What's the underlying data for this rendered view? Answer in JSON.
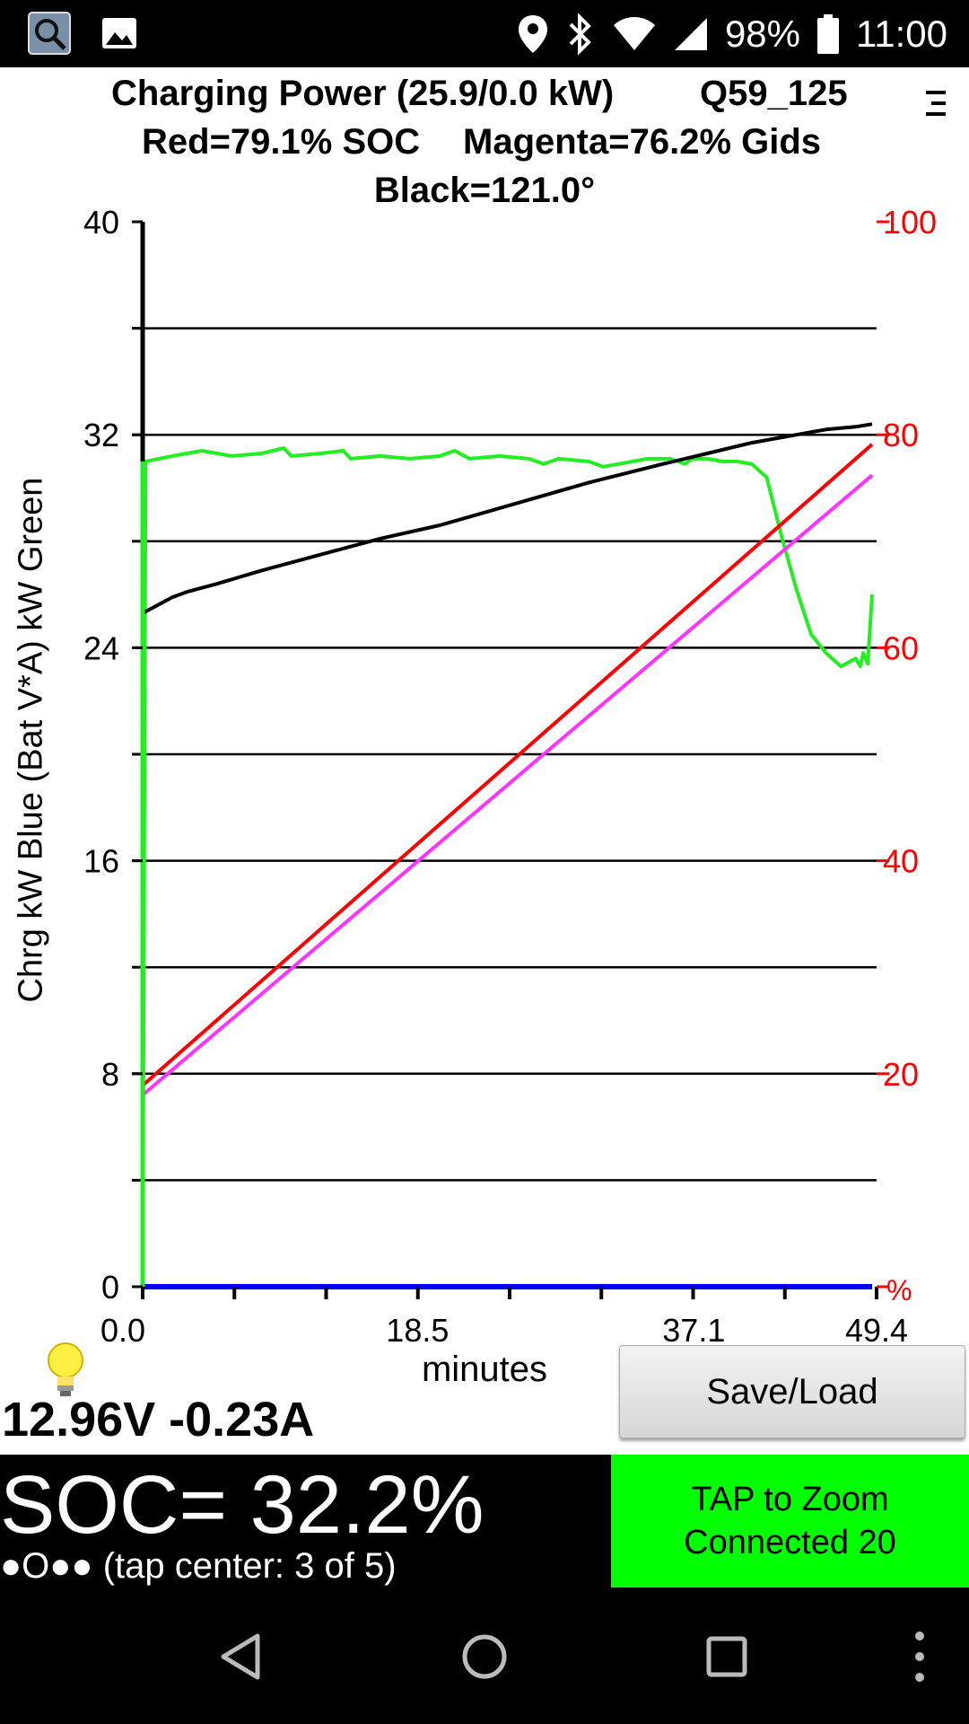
{
  "status_bar": {
    "icons": [
      "app-logo-icon",
      "image-icon",
      "location-icon",
      "bluetooth-icon",
      "wifi-icon",
      "signal-icon",
      "battery-icon"
    ],
    "battery": "98%",
    "time": "11:00"
  },
  "header": {
    "line1_title": "Charging Power (25.9/0.0 kW)",
    "line1_id": "Q59_125",
    "line2_soc": "Red=79.1% SOC",
    "line2_gids": "Magenta=76.2% Gids",
    "line3": "Black=121.0°"
  },
  "chart_data": {
    "type": "line",
    "ylabel": "Chrg kW Blue  (Bat V*A) kW Green",
    "xlabel": "minutes",
    "xlim": [
      0,
      49.4
    ],
    "ylim": [
      0,
      40
    ],
    "y2lim": [
      0,
      100
    ],
    "y2unit": "%",
    "x_ticks": [
      "0.0",
      "18.5",
      "37.1",
      "49.4"
    ],
    "y_ticks": [
      "0",
      "8",
      "16",
      "24",
      "32",
      "40"
    ],
    "y2_ticks": [
      "20",
      "40",
      "60",
      "80",
      "100"
    ],
    "grid": true,
    "colors": {
      "green": "#22ee22",
      "black": "#000000",
      "red": "#ff0000",
      "magenta": "#ff33ff",
      "blue": "#0000ff"
    },
    "series": [
      {
        "color": "green",
        "axis": "left",
        "x": [
          0,
          0.2,
          2,
          4,
          6,
          8,
          9.5,
          10,
          12,
          13.5,
          14,
          16,
          18,
          20,
          21,
          22,
          24,
          26,
          27,
          28,
          30,
          31,
          33,
          34,
          35.5,
          36.5,
          37,
          38,
          39,
          40,
          41,
          42,
          43,
          44,
          45,
          46,
          47,
          48,
          48.3,
          48.5,
          48.8,
          49.1
        ],
        "y": [
          0,
          31.0,
          31.2,
          31.4,
          31.2,
          31.3,
          31.5,
          31.2,
          31.3,
          31.4,
          31.1,
          31.2,
          31.1,
          31.2,
          31.4,
          31.1,
          31.2,
          31.1,
          30.9,
          31.1,
          31.0,
          30.8,
          31.0,
          31.1,
          31.1,
          30.9,
          31.1,
          31.1,
          31.0,
          31.0,
          30.9,
          30.4,
          28.2,
          26.2,
          24.5,
          23.8,
          23.3,
          23.6,
          23.3,
          23.8,
          23.4,
          26.0
        ]
      },
      {
        "color": "black",
        "axis": "left",
        "x": [
          0,
          1,
          2,
          3,
          5,
          8,
          12,
          16,
          20,
          25,
          30,
          35,
          38,
          41,
          44,
          46,
          48,
          49.1
        ],
        "y": [
          25.3,
          25.6,
          25.9,
          26.1,
          26.4,
          26.9,
          27.5,
          28.1,
          28.6,
          29.4,
          30.2,
          30.9,
          31.3,
          31.7,
          32.0,
          32.2,
          32.3,
          32.4
        ]
      },
      {
        "color": "red",
        "axis": "right",
        "x": [
          0,
          49.1
        ],
        "y": [
          18.9,
          79.1
        ]
      },
      {
        "color": "magenta",
        "axis": "right",
        "x": [
          0,
          49.1
        ],
        "y": [
          18.0,
          76.2
        ]
      },
      {
        "color": "blue",
        "axis": "left",
        "x": [
          0,
          49.1
        ],
        "y": [
          0,
          0
        ]
      }
    ]
  },
  "readout": {
    "voltage": "12.96V -0.23A",
    "save_load": "Save/Load",
    "soc": "SOC= 32.2%",
    "dots_label": "●O●● (tap center: 3 of 5)",
    "tap_zoom": "TAP to Zoom",
    "connected": "Connected 20"
  },
  "nav_bar": {
    "buttons": [
      "back-icon",
      "home-icon",
      "recents-icon",
      "overflow-menu-icon"
    ]
  }
}
